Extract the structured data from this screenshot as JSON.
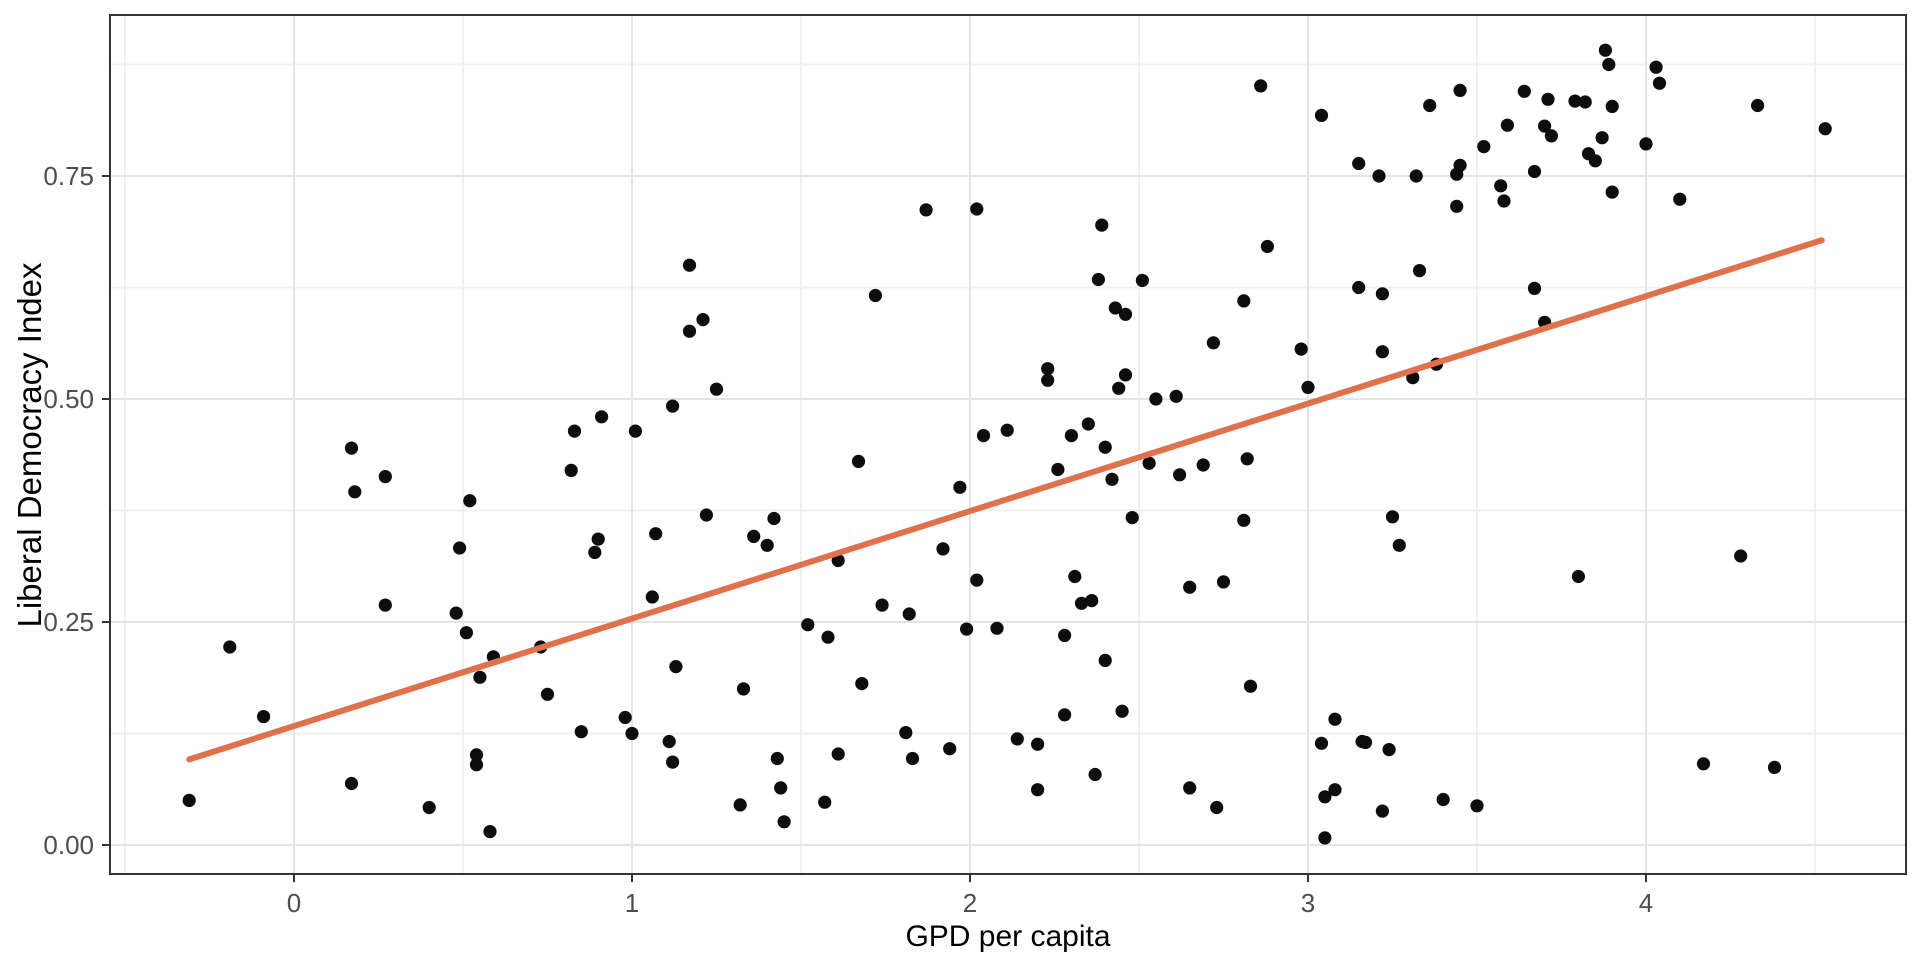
{
  "chart_data": {
    "type": "scatter",
    "title": "",
    "xlabel": "GPD per capita",
    "ylabel": "Liberal Democracy Index",
    "x_ticks": [
      0,
      1,
      2,
      3,
      4
    ],
    "x_tick_labels": [
      "0",
      "1",
      "2",
      "3",
      "4"
    ],
    "y_ticks": [
      0,
      0.25,
      0.5,
      0.75
    ],
    "y_tick_labels": [
      "0.00",
      "0.25",
      "0.50",
      "0.75"
    ],
    "xlim": [
      -0.5444,
      4.7692
    ],
    "ylim": [
      -0.0325,
      0.9305
    ],
    "grid": "major+minor",
    "legend": "none",
    "point_style": {
      "color": "#0D0D0D",
      "radius": 6.6
    },
    "trend_line": {
      "type": "linear",
      "x_start": -0.31,
      "y_start": 0.096,
      "x_end": 4.52,
      "y_end": 0.678,
      "color": "#E0714A",
      "width": 6
    },
    "colors": {
      "background": "#FFFFFF",
      "panel_border": "#333333",
      "grid_major": "#E4E4E4",
      "grid_minor": "#F0F0F0",
      "tick_mark": "#333333",
      "tick_label": "#4D4D4D",
      "axis_title": "#000000"
    },
    "points": [
      [
        -0.31,
        0.05
      ],
      [
        -0.19,
        0.222
      ],
      [
        -0.09,
        0.144
      ],
      [
        0.17,
        0.445
      ],
      [
        0.27,
        0.413
      ],
      [
        0.18,
        0.396
      ],
      [
        0.52,
        0.386
      ],
      [
        0.49,
        0.333
      ],
      [
        0.27,
        0.269
      ],
      [
        0.48,
        0.26
      ],
      [
        0.51,
        0.238
      ],
      [
        0.59,
        0.211
      ],
      [
        0.73,
        0.222
      ],
      [
        0.55,
        0.188
      ],
      [
        0.75,
        0.169
      ],
      [
        0.54,
        0.101
      ],
      [
        0.54,
        0.09
      ],
      [
        0.17,
        0.069
      ],
      [
        0.4,
        0.042
      ],
      [
        0.58,
        0.015
      ],
      [
        1.17,
        0.65
      ],
      [
        1.21,
        0.589
      ],
      [
        1.17,
        0.576
      ],
      [
        1.25,
        0.511
      ],
      [
        1.12,
        0.492
      ],
      [
        0.91,
        0.48
      ],
      [
        0.83,
        0.464
      ],
      [
        1.01,
        0.464
      ],
      [
        0.82,
        0.42
      ],
      [
        1.67,
        0.43
      ],
      [
        1.72,
        0.616
      ],
      [
        1.87,
        0.712
      ],
      [
        2.02,
        0.713
      ],
      [
        2.04,
        0.459
      ],
      [
        2.11,
        0.465
      ],
      [
        1.97,
        0.401
      ],
      [
        1.22,
        0.37
      ],
      [
        1.42,
        0.366
      ],
      [
        1.07,
        0.349
      ],
      [
        1.36,
        0.346
      ],
      [
        1.4,
        0.336
      ],
      [
        0.9,
        0.343
      ],
      [
        0.89,
        0.328
      ],
      [
        1.61,
        0.319
      ],
      [
        1.92,
        0.332
      ],
      [
        2.02,
        0.297
      ],
      [
        1.06,
        0.278
      ],
      [
        1.52,
        0.247
      ],
      [
        1.58,
        0.233
      ],
      [
        1.74,
        0.269
      ],
      [
        1.82,
        0.259
      ],
      [
        1.99,
        0.242
      ],
      [
        2.08,
        0.243
      ],
      [
        1.13,
        0.2
      ],
      [
        1.68,
        0.181
      ],
      [
        1.33,
        0.175
      ],
      [
        0.98,
        0.143
      ],
      [
        0.85,
        0.127
      ],
      [
        1.0,
        0.125
      ],
      [
        1.11,
        0.116
      ],
      [
        1.12,
        0.093
      ],
      [
        1.81,
        0.126
      ],
      [
        1.61,
        0.102
      ],
      [
        1.83,
        0.097
      ],
      [
        1.94,
        0.108
      ],
      [
        1.43,
        0.097
      ],
      [
        1.44,
        0.064
      ],
      [
        1.32,
        0.045
      ],
      [
        1.57,
        0.048
      ],
      [
        1.45,
        0.026
      ],
      [
        2.43,
        0.602
      ],
      [
        2.46,
        0.595
      ],
      [
        2.81,
        0.61
      ],
      [
        2.72,
        0.563
      ],
      [
        2.98,
        0.556
      ],
      [
        3.22,
        0.553
      ],
      [
        2.23,
        0.534
      ],
      [
        2.23,
        0.521
      ],
      [
        2.46,
        0.527
      ],
      [
        2.44,
        0.512
      ],
      [
        3.0,
        0.513
      ],
      [
        3.38,
        0.539
      ],
      [
        3.31,
        0.524
      ],
      [
        2.55,
        0.5
      ],
      [
        2.61,
        0.503
      ],
      [
        2.35,
        0.472
      ],
      [
        2.3,
        0.459
      ],
      [
        2.4,
        0.446
      ],
      [
        2.26,
        0.421
      ],
      [
        2.42,
        0.41
      ],
      [
        2.53,
        0.428
      ],
      [
        2.62,
        0.415
      ],
      [
        2.69,
        0.426
      ],
      [
        2.82,
        0.433
      ],
      [
        2.48,
        0.367
      ],
      [
        2.81,
        0.364
      ],
      [
        3.25,
        0.368
      ],
      [
        3.27,
        0.336
      ],
      [
        2.31,
        0.301
      ],
      [
        2.65,
        0.289
      ],
      [
        2.75,
        0.295
      ],
      [
        2.86,
        0.851
      ],
      [
        3.04,
        0.818
      ],
      [
        3.36,
        0.829
      ],
      [
        3.45,
        0.846
      ],
      [
        3.15,
        0.764
      ],
      [
        3.21,
        0.75
      ],
      [
        3.32,
        0.75
      ],
      [
        3.44,
        0.752
      ],
      [
        3.45,
        0.762
      ],
      [
        3.44,
        0.716
      ],
      [
        2.39,
        0.695
      ],
      [
        2.88,
        0.671
      ],
      [
        2.38,
        0.634
      ],
      [
        2.51,
        0.633
      ],
      [
        3.15,
        0.625
      ],
      [
        3.22,
        0.618
      ],
      [
        3.33,
        0.644
      ],
      [
        3.88,
        0.891
      ],
      [
        3.89,
        0.875
      ],
      [
        4.03,
        0.872
      ],
      [
        4.04,
        0.854
      ],
      [
        3.64,
        0.845
      ],
      [
        3.71,
        0.836
      ],
      [
        3.79,
        0.834
      ],
      [
        3.82,
        0.833
      ],
      [
        3.9,
        0.828
      ],
      [
        4.33,
        0.829
      ],
      [
        3.59,
        0.807
      ],
      [
        4.53,
        0.803
      ],
      [
        3.7,
        0.806
      ],
      [
        3.72,
        0.795
      ],
      [
        3.52,
        0.783
      ],
      [
        3.87,
        0.793
      ],
      [
        3.83,
        0.775
      ],
      [
        3.85,
        0.767
      ],
      [
        4.0,
        0.786
      ],
      [
        3.67,
        0.755
      ],
      [
        3.57,
        0.739
      ],
      [
        3.58,
        0.722
      ],
      [
        3.9,
        0.732
      ],
      [
        4.1,
        0.724
      ],
      [
        3.67,
        0.624
      ],
      [
        3.7,
        0.586
      ],
      [
        3.8,
        0.301
      ],
      [
        4.28,
        0.324
      ],
      [
        2.33,
        0.271
      ],
      [
        2.36,
        0.274
      ],
      [
        2.28,
        0.235
      ],
      [
        2.4,
        0.207
      ],
      [
        2.83,
        0.178
      ],
      [
        2.28,
        0.146
      ],
      [
        2.45,
        0.15
      ],
      [
        2.14,
        0.119
      ],
      [
        2.2,
        0.113
      ],
      [
        2.37,
        0.079
      ],
      [
        2.2,
        0.062
      ],
      [
        2.65,
        0.064
      ],
      [
        2.73,
        0.042
      ],
      [
        3.08,
        0.141
      ],
      [
        3.04,
        0.114
      ],
      [
        3.16,
        0.116
      ],
      [
        3.17,
        0.115
      ],
      [
        3.24,
        0.107
      ],
      [
        3.05,
        0.054
      ],
      [
        3.08,
        0.062
      ],
      [
        3.22,
        0.038
      ],
      [
        3.4,
        0.051
      ],
      [
        3.05,
        0.008
      ],
      [
        3.5,
        0.044
      ],
      [
        4.17,
        0.091
      ],
      [
        4.38,
        0.087
      ]
    ]
  }
}
